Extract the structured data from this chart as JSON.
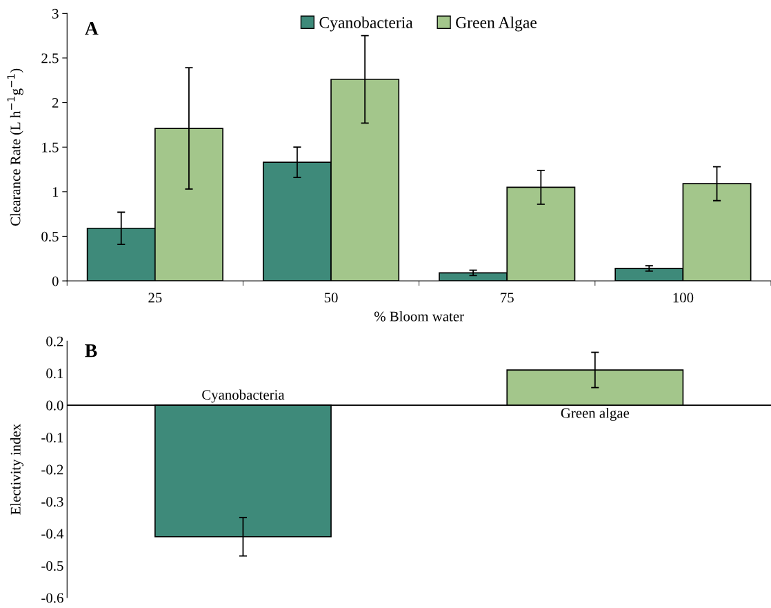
{
  "chart_data": [
    {
      "type": "bar",
      "annotations": [
        "A"
      ],
      "xlabel": "% Bloom water",
      "ylabel": "Clearance Rate (L h$^{−1}$g$^{−1}$)",
      "categories": [
        "25",
        "50",
        "75",
        "100"
      ],
      "ylim": [
        0,
        3
      ],
      "yticks": [
        0,
        0.5,
        1,
        1.5,
        2,
        2.5,
        3
      ],
      "legend": "top",
      "grid": false,
      "series": [
        {
          "name": "Cyanobacteria",
          "color": "#3e8a7a",
          "values": [
            0.59,
            1.33,
            0.09,
            0.14
          ],
          "errors": [
            0.18,
            0.17,
            0.03,
            0.03
          ]
        },
        {
          "name": "Green Algae",
          "color": "#a3c68b",
          "values": [
            1.71,
            2.26,
            1.05,
            1.09
          ],
          "errors": [
            0.68,
            0.49,
            0.19,
            0.19
          ]
        }
      ]
    },
    {
      "type": "bar",
      "annotations": [
        "B"
      ],
      "ylabel": "Electivity index",
      "ref_lines": [
        {
          "axis": "y",
          "value": 0
        }
      ],
      "categories": [
        "Cyanobacteria",
        "Green algae"
      ],
      "ylim": [
        -0.6,
        0.2
      ],
      "yticks": [
        {
          "value": -0.6,
          "label": "-0.6"
        },
        {
          "value": -0.5,
          "label": "-0.5"
        },
        {
          "value": -0.4,
          "label": "-0.4"
        },
        {
          "value": -0.3,
          "label": "-0.3"
        },
        {
          "value": -0.2,
          "label": "-0.2"
        },
        {
          "value": -0.1,
          "label": "-0.1"
        },
        {
          "value": 0,
          "label": "0.0"
        },
        {
          "value": 0.1,
          "label": "0.1"
        },
        {
          "value": 0.2,
          "label": "0.2"
        }
      ],
      "grid": false,
      "series": [
        {
          "colors": [
            "#3e8a7a",
            "#a3c68b"
          ],
          "values": [
            -0.41,
            0.11
          ],
          "errors": [
            0.06,
            0.055
          ]
        }
      ]
    }
  ]
}
